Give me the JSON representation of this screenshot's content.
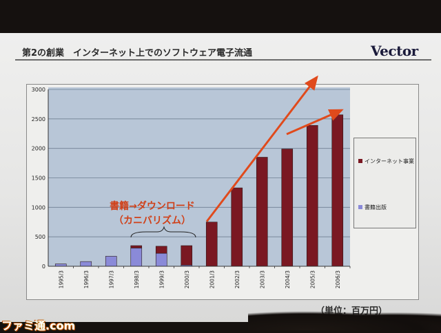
{
  "slide": {
    "title": "第2の創業　インターネット上でのソフトウェア電子流通",
    "logo": "Vector",
    "callout_line1": "書籍→ダウンロード",
    "callout_line2": "（カニバリズム）",
    "unit_label": "（単位：百万円）"
  },
  "watermark": "ファミ通.com",
  "colors": {
    "internet": "#7a1822",
    "books": "#8a8ad8",
    "plot_bg": "#b8c6d7",
    "arrow": "#e04a1c",
    "callout": "#d04018"
  },
  "chart_data": {
    "type": "bar",
    "stacked": true,
    "categories": [
      "1995/3",
      "1996/3",
      "1997/3",
      "1998/3",
      "1999/3",
      "2000/3",
      "2001/3",
      "2002/3",
      "2003/3",
      "2004/3",
      "2005/3",
      "2006/3"
    ],
    "series": [
      {
        "name": "書籍出版",
        "color": "#8a8ad8",
        "values": [
          40,
          80,
          170,
          310,
          220,
          20,
          0,
          0,
          0,
          0,
          0,
          0
        ]
      },
      {
        "name": "インターネット事業",
        "color": "#7a1822",
        "values": [
          0,
          0,
          0,
          40,
          120,
          330,
          750,
          1330,
          1850,
          1990,
          2390,
          2570
        ]
      }
    ],
    "ylim": [
      0,
      3000
    ],
    "yticks": [
      0,
      500,
      1000,
      1500,
      2000,
      2500,
      3000
    ],
    "grid": true,
    "legend_position": "right",
    "title": "",
    "xlabel": "",
    "ylabel": ""
  }
}
